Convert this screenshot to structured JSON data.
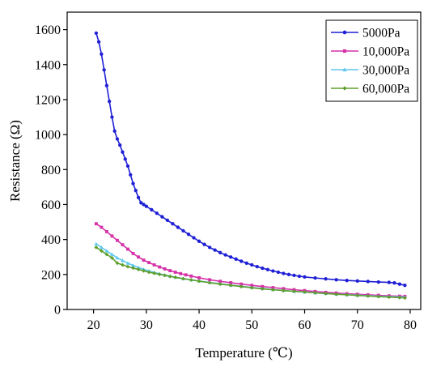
{
  "chart_data": {
    "type": "line",
    "title": "",
    "xlabel": "Temperature (℃)",
    "ylabel": "Resistance (Ω)",
    "xlim": [
      15,
      82
    ],
    "ylim": [
      0,
      1700
    ],
    "xticks": [
      20,
      30,
      40,
      50,
      60,
      70,
      80
    ],
    "yticks": [
      0,
      200,
      400,
      600,
      800,
      1000,
      1200,
      1400,
      1600
    ],
    "grid": false,
    "legend_position": "top-right",
    "series": [
      {
        "name": "5000Pa",
        "color": "#1f1fd6",
        "marker": "circle",
        "x": [
          20.5,
          21,
          21.5,
          22,
          22.5,
          23,
          23.5,
          24,
          24.5,
          25,
          25.5,
          26,
          26.5,
          27,
          27.5,
          28,
          28.5,
          29,
          29.5,
          30,
          31,
          32,
          33,
          34,
          35,
          36,
          37,
          38,
          39,
          40,
          41,
          42,
          43,
          44,
          45,
          46,
          47,
          48,
          49,
          50,
          51,
          52,
          53,
          54,
          55,
          56,
          57,
          58,
          59,
          60,
          62,
          64,
          66,
          68,
          70,
          72,
          74,
          76,
          77,
          78,
          79
        ],
        "y": [
          1580,
          1530,
          1460,
          1370,
          1280,
          1190,
          1100,
          1020,
          975,
          940,
          900,
          860,
          820,
          770,
          720,
          680,
          640,
          610,
          600,
          590,
          570,
          550,
          530,
          510,
          490,
          470,
          450,
          430,
          410,
          390,
          372,
          355,
          340,
          325,
          312,
          300,
          288,
          276,
          265,
          255,
          245,
          236,
          228,
          220,
          213,
          206,
          200,
          195,
          190,
          186,
          180,
          175,
          170,
          166,
          163,
          160,
          157,
          155,
          152,
          145,
          138
        ]
      },
      {
        "name": "10,000Pa",
        "color": "#d62fa8",
        "marker": "square",
        "x": [
          20.5,
          21.5,
          22.5,
          23.5,
          24.5,
          25.5,
          26.5,
          27.5,
          28.5,
          29.5,
          30.5,
          31.5,
          32.5,
          33.5,
          34.5,
          35.5,
          36.5,
          37.5,
          38.5,
          40,
          42,
          44,
          46,
          48,
          50,
          52,
          54,
          56,
          58,
          60,
          62,
          64,
          66,
          68,
          70,
          72,
          74,
          76,
          78,
          79
        ],
        "y": [
          490,
          470,
          445,
          420,
          395,
          370,
          345,
          320,
          300,
          282,
          268,
          255,
          243,
          232,
          222,
          213,
          205,
          198,
          191,
          181,
          170,
          161,
          153,
          145,
          138,
          131,
          125,
          119,
          113,
          108,
          103,
          98,
          94,
          90,
          87,
          84,
          81,
          78,
          76,
          75
        ]
      },
      {
        "name": "30,000Pa",
        "color": "#5ec8ee",
        "marker": "triangle",
        "x": [
          20.5,
          21.5,
          22.5,
          23.5,
          24.5,
          25.5,
          26.5,
          27.5,
          28.5,
          29.5,
          30.5,
          31.5,
          32.5,
          33.5,
          34.5,
          35.5,
          37,
          38.5,
          40,
          42,
          44,
          46,
          48,
          50,
          52,
          54,
          56,
          58,
          60,
          62,
          64,
          66,
          68,
          70,
          72,
          74,
          76,
          78,
          79
        ],
        "y": [
          375,
          355,
          335,
          315,
          295,
          280,
          265,
          252,
          240,
          230,
          220,
          212,
          204,
          197,
          191,
          185,
          177,
          170,
          163,
          155,
          147,
          140,
          133,
          126,
          120,
          114,
          109,
          104,
          100,
          96,
          92,
          88,
          85,
          82,
          79,
          76,
          74,
          72,
          71
        ]
      },
      {
        "name": "60,000Pa",
        "color": "#5f9e2a",
        "marker": "diamond",
        "x": [
          20.5,
          21.5,
          22.5,
          23.5,
          24.5,
          25.5,
          26.5,
          27.5,
          28.5,
          29.5,
          30.5,
          31.5,
          32.5,
          33.5,
          34.5,
          35.5,
          37,
          38.5,
          40,
          42,
          44,
          46,
          48,
          50,
          52,
          54,
          56,
          58,
          60,
          62,
          64,
          66,
          68,
          70,
          72,
          74,
          76,
          78,
          79
        ],
        "y": [
          355,
          335,
          315,
          295,
          265,
          255,
          245,
          237,
          229,
          221,
          213,
          207,
          201,
          195,
          189,
          184,
          176,
          169,
          162,
          153,
          145,
          138,
          131,
          124,
          118,
          113,
          108,
          104,
          100,
          95,
          91,
          87,
          84,
          80,
          77,
          74,
          71,
          68,
          66
        ]
      }
    ]
  }
}
